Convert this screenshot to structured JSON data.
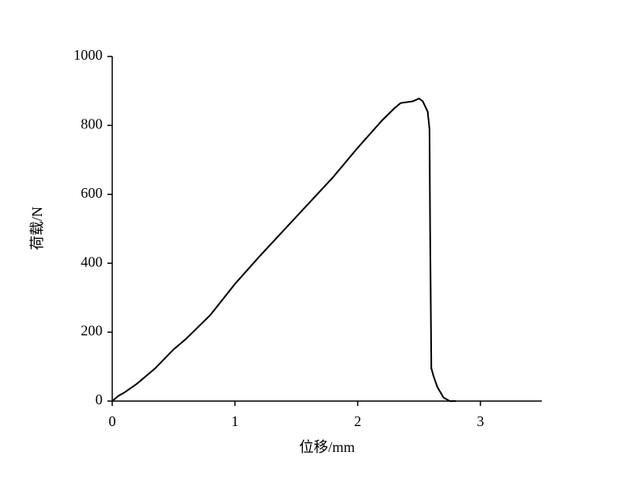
{
  "chart_data": {
    "type": "line",
    "x_label": "位移/mm",
    "y_label": "荷载/N",
    "x": [
      0,
      0.05,
      0.1,
      0.2,
      0.3,
      0.35,
      0.5,
      0.6,
      0.8,
      1.0,
      1.2,
      1.5,
      1.8,
      2.0,
      2.2,
      2.3,
      2.35,
      2.45,
      2.5,
      2.53,
      2.57,
      2.585,
      2.59,
      2.6,
      2.62,
      2.65,
      2.7,
      2.75,
      2.8
    ],
    "series": [
      {
        "name": "荷载",
        "color": "#000000",
        "values": [
          0,
          15,
          25,
          50,
          80,
          95,
          150,
          180,
          250,
          340,
          420,
          535,
          650,
          735,
          815,
          850,
          865,
          870,
          878,
          870,
          840,
          790,
          500,
          95,
          70,
          40,
          10,
          0,
          0
        ]
      }
    ],
    "xlim": [
      0,
      3.5
    ],
    "xticks": [
      0,
      1,
      2,
      3
    ],
    "ylim": [
      0,
      1000
    ],
    "yticks": [
      0,
      200,
      400,
      600,
      800,
      1000
    ]
  }
}
